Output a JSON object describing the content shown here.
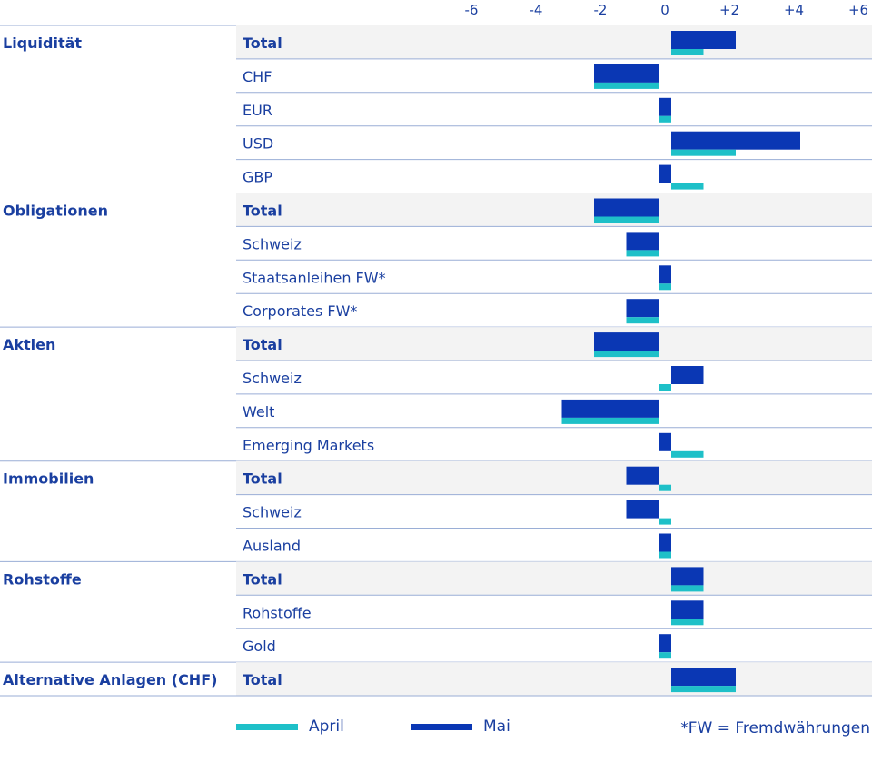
{
  "colors": {
    "april": "#1ec0c8",
    "mai": "#0a37b4",
    "text": "#1a3fa0",
    "row_shade": "#f3f3f3",
    "divider": "#9aaed6"
  },
  "legend": {
    "april_label": "April",
    "mai_label": "Mai"
  },
  "footnote": "*FW = Fremdwährungen",
  "chart_data": {
    "type": "bar",
    "orientation": "horizontal",
    "xlim": [
      -6,
      6
    ],
    "ticks": [
      -6,
      -4,
      -2,
      0,
      2,
      4,
      6
    ],
    "tick_labels": [
      "-6",
      "-4",
      "-2",
      "0",
      "+2",
      "+4",
      "+6"
    ],
    "grid": false,
    "legend_position": "bottom",
    "series": [
      {
        "name": "April",
        "color_key": "april"
      },
      {
        "name": "Mai",
        "color_key": "mai"
      }
    ],
    "groups": [
      {
        "label": "Liquidität",
        "rows": [
          {
            "label": "Total",
            "total": true,
            "april": 1,
            "mai": 2
          },
          {
            "label": "CHF",
            "total": false,
            "april": -2,
            "mai": -2
          },
          {
            "label": "EUR",
            "total": false,
            "april": 0,
            "mai": 0
          },
          {
            "label": "USD",
            "total": false,
            "april": 2,
            "mai": 4
          },
          {
            "label": "GBP",
            "total": false,
            "april": 1,
            "mai": 0
          }
        ]
      },
      {
        "label": "Obligationen",
        "rows": [
          {
            "label": "Total",
            "total": true,
            "april": -2,
            "mai": -2
          },
          {
            "label": "Schweiz",
            "total": false,
            "april": -1,
            "mai": -1
          },
          {
            "label": "Staatsanleihen FW*",
            "total": false,
            "april": 0,
            "mai": 0
          },
          {
            "label": "Corporates FW*",
            "total": false,
            "april": -1,
            "mai": -1
          }
        ]
      },
      {
        "label": "Aktien",
        "rows": [
          {
            "label": "Total",
            "total": true,
            "april": -2,
            "mai": -2
          },
          {
            "label": "Schweiz",
            "total": false,
            "april": 0,
            "mai": 1
          },
          {
            "label": "Welt",
            "total": false,
            "april": -3,
            "mai": -3
          },
          {
            "label": "Emerging Markets",
            "total": false,
            "april": 1,
            "mai": 0
          }
        ]
      },
      {
        "label": "Immobilien",
        "rows": [
          {
            "label": "Total",
            "total": true,
            "april": 0,
            "mai": -1
          },
          {
            "label": "Schweiz",
            "total": false,
            "april": 0,
            "mai": -1
          },
          {
            "label": "Ausland",
            "total": false,
            "april": 0,
            "mai": 0
          }
        ]
      },
      {
        "label": "Rohstoffe",
        "rows": [
          {
            "label": "Total",
            "total": true,
            "april": 1,
            "mai": 1
          },
          {
            "label": "Rohstoffe",
            "total": false,
            "april": 1,
            "mai": 1
          },
          {
            "label": "Gold",
            "total": false,
            "april": 0,
            "mai": 0
          }
        ]
      },
      {
        "label": "Alternative Anlagen (CHF)",
        "rows": [
          {
            "label": "Total",
            "total": true,
            "april": 2,
            "mai": 2
          }
        ]
      }
    ]
  }
}
